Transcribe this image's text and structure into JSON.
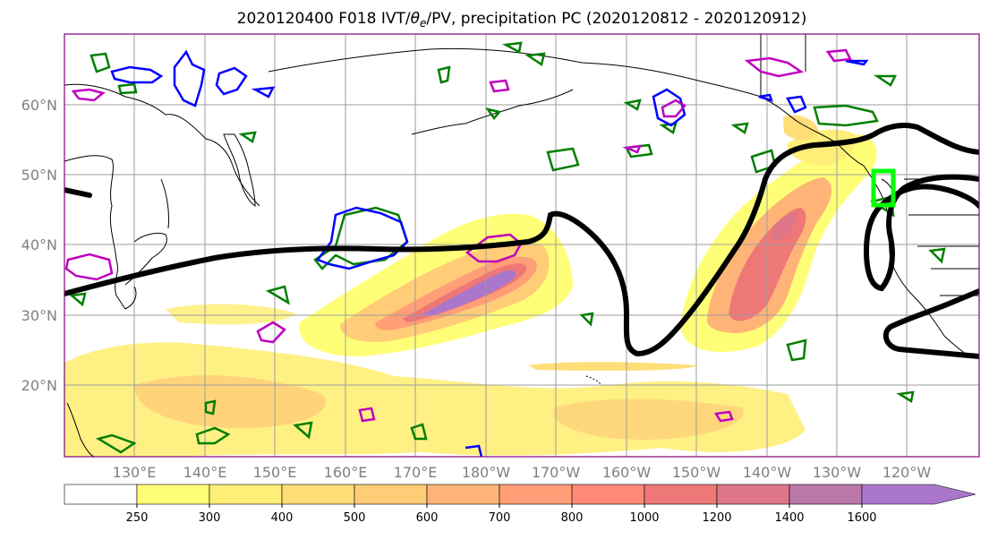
{
  "title": {
    "prefix": "2020120400 F018 IVT/",
    "theta": "θ",
    "sub": "e",
    "suffix": "/PV, precipitation PC (2020120812 - 2020120912)"
  },
  "map": {
    "lon_labels": [
      "130°E",
      "140°E",
      "150°E",
      "160°E",
      "170°E",
      "180°W",
      "170°W",
      "160°W",
      "150°W",
      "140°W",
      "130°W",
      "120°W"
    ],
    "lat_labels": [
      "60°N",
      "50°N",
      "40°N",
      "30°N",
      "20°N"
    ],
    "grid": true
  },
  "colorbar": {
    "levels": [
      "250",
      "300",
      "400",
      "500",
      "600",
      "700",
      "800",
      "1000",
      "1200",
      "1400",
      "1600"
    ],
    "colors": [
      "#ffffff",
      "#ffff77",
      "#ffee77",
      "#ffdd77",
      "#ffcc77",
      "#ffb477",
      "#ff9e77",
      "#ff8877",
      "#ee7777",
      "#dd7788",
      "#bb77aa",
      "#aa77cc"
    ],
    "extend": "max"
  },
  "colors": {
    "theta_e": "#007f00",
    "pv": "#0000ff",
    "precip_pc": "#bf00bf",
    "ivt_line": "#000000",
    "target_box": "#00ff00",
    "coast": "#000000"
  }
}
